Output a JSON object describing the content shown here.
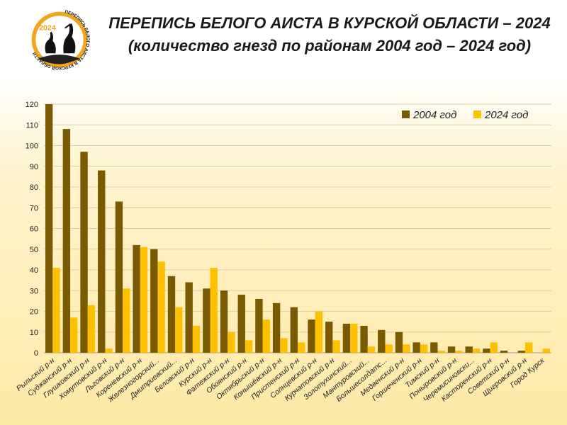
{
  "header": {
    "title": "ПЕРЕПИСЬ БЕЛОГО АИСТА В КУРСКОЙ ОБЛАСТИ – 2024",
    "subtitle": "(количество гнезд по районам 2004 год – 2024 год)"
  },
  "logo": {
    "year": "2024",
    "ring_text": "ПЕРЕПИСЬ БЕЛОГО АИСТА В КУРСКОЙ ОБЛАСТИ",
    "icon": "stork-logo-icon",
    "color": "#f2a51e"
  },
  "chart_data": {
    "type": "bar",
    "categories": [
      "Рыльский р-н",
      "Суджанский р-н",
      "Глушковский р-н",
      "Хомутовский р-н",
      "Льговский р-н",
      "Кореневский р-н",
      "Железногорский...",
      "Дмитриевский...",
      "Беловский р-н",
      "Курский р-н",
      "Фатежский р-н",
      "Обоянский р-н",
      "Октябрьский р-н",
      "Конышёвский р-н",
      "Пристенский р-н",
      "Солнцевский р-н",
      "Курчатовский р-н",
      "Золотухинский...",
      "Мантуровский...",
      "Большесолдатс...",
      "Медвенский р-н",
      "Горшеченский р-н",
      "Тимский р-н",
      "Поныровский р-н",
      "Черемисиновски...",
      "Касторенский р-н",
      "Советский р-н",
      "Щигровский р-н",
      "Город Курск"
    ],
    "series": [
      {
        "name": "2004 год",
        "color": "#7a5a00",
        "values": [
          120,
          108,
          97,
          88,
          73,
          52,
          50,
          37,
          34,
          31,
          30,
          28,
          26,
          24,
          22,
          16,
          15,
          14,
          13,
          11,
          10,
          5,
          5,
          3,
          3,
          2,
          1,
          1,
          0
        ]
      },
      {
        "name": "2024 год",
        "color": "#ffc000",
        "values": [
          41,
          17,
          23,
          2,
          31,
          51,
          44,
          22,
          13,
          41,
          10,
          6,
          16,
          7,
          5,
          20,
          6,
          14,
          3,
          4,
          4,
          4,
          1,
          1,
          2,
          5,
          0,
          5,
          2
        ]
      }
    ],
    "ylim": [
      0,
      120
    ],
    "yticks": [
      0,
      10,
      20,
      30,
      40,
      50,
      60,
      70,
      80,
      90,
      100,
      110,
      120
    ],
    "grid": true,
    "legend_position": "top-right"
  }
}
